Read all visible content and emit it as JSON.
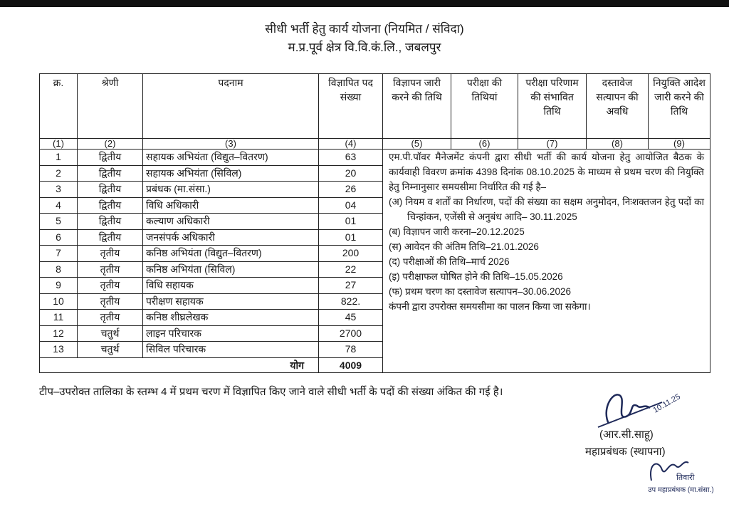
{
  "header": {
    "title": "सीधी भर्ती हेतु कार्य योजना (नियमित / संविदा)",
    "subtitle": "म.प्र.पूर्व क्षेत्र वि.वि.कं.लि., जबलपुर"
  },
  "table": {
    "headers": [
      "क्र.",
      "श्रेणी",
      "पदनाम",
      "विज्ञापित पद संख्या",
      "विज्ञापन जारी करने की तिथि",
      "परीक्षा की तिथियां",
      "परीक्षा परिणाम की संभावित तिथि",
      "दस्तावेज सत्यापन की अवधि",
      "नियुक्ति आदेश जारी करने की तिथि"
    ],
    "column_numbers": [
      "(1)",
      "(2)",
      "(3)",
      "(4)",
      "(5)",
      "(6)",
      "(7)",
      "(8)",
      "(9)"
    ],
    "rows": [
      [
        "1",
        "द्वितीय",
        "सहायक अभियंता (विद्युत–वितरण)",
        "63"
      ],
      [
        "2",
        "द्वितीय",
        "सहायक अभियंता (सिविल)",
        "20"
      ],
      [
        "3",
        "द्वितीय",
        "प्रबंधक (मा.संसा.)",
        "26"
      ],
      [
        "4",
        "द्वितीय",
        "विधि अधिकारी",
        "04"
      ],
      [
        "5",
        "द्वितीय",
        "कल्याण अधिकारी",
        "01"
      ],
      [
        "6",
        "द्वितीय",
        "जनसंपर्क अधिकारी",
        "01"
      ],
      [
        "7",
        "तृतीय",
        "कनिष्ठ अभियंता (विद्युत–वितरण)",
        "200"
      ],
      [
        "8",
        "तृतीय",
        "कनिष्ठ अभियंता (सिविल)",
        "22"
      ],
      [
        "9",
        "तृतीय",
        "विधि सहायक",
        "27"
      ],
      [
        "10",
        "तृतीय",
        "परीक्षण सहायक",
        "822."
      ],
      [
        "11",
        "तृतीय",
        "कनिष्ठ शीघ्रलेखक",
        "45"
      ],
      [
        "12",
        "चतुर्थ",
        "लाइन परिचारक",
        "2700"
      ],
      [
        "13",
        "चतुर्थ",
        "सिविल परिचारक",
        "78"
      ]
    ],
    "total_label": "योग",
    "total_value": "4009",
    "note": {
      "intro": "एम.पी.पॉवर मैनेजमेंट कंपनी द्वारा सीधी भर्ती की कार्य योजना हेतु आयोजित बैठक के कार्यवाही विवरण क्रमांक 4398 दिनांक 08.10.2025 के माध्यम से प्रथम चरण की नियुक्ति हेतु निम्नानुसार समयसीमा निर्धारित की गई है–",
      "items": [
        "(अ) नियम व शर्तों का निर्धारण, पदों की संख्या का सक्षम अनुमोदन, निःशक्तजन हेतु पदों का चिन्हांकन, एजेंसी से अनुबंध आदि– 30.11.2025",
        "(ब) विज्ञापन जारी करना–20.12.2025",
        "(स) आवेदन की अंतिम तिथि–21.01.2026",
        "(द) परीक्षाओं की तिथि–मार्च 2026",
        "(इ) परीक्षाफल घोषित होने की तिथि–15.05.2026",
        "(फ) प्रथम चरण का दस्तावेज सत्यापन–30.06.2026"
      ],
      "closing": "कंपनी द्वारा उपरोक्त समयसीमा का पालन किया जा सकेगा।"
    }
  },
  "footnote": "टीप–उपरोक्त तालिका के स्तम्भ 4 में प्रथम चरण में विज्ञापित किए जाने वाले सीधी भर्ती के पदों की संख्या अंकित की गई है।",
  "signatory": {
    "name": "(आर.सी.साहू)",
    "designation": "महाप्रबंधक (स्थापना)",
    "signature_date": "10.11.25"
  },
  "second_signatory": {
    "name": "तिवारी",
    "designation": "उप महाप्रबंधक (मा.संसा.)"
  },
  "colors": {
    "ink": "#1a1a1a",
    "signature_ink": "#1f2a5a"
  }
}
